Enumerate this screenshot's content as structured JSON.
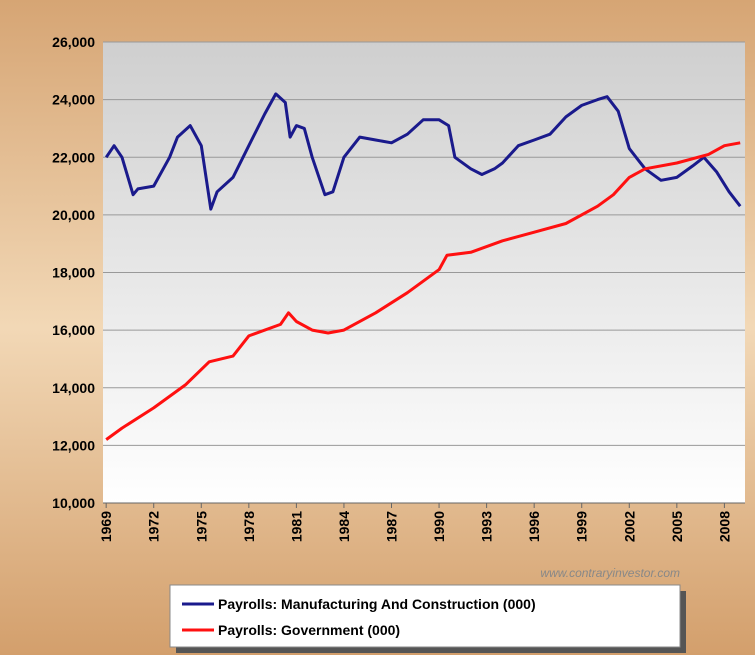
{
  "chart_data": {
    "type": "line",
    "xlim": [
      1968.8,
      2009.3
    ],
    "xticks": [
      1969,
      1972,
      1975,
      1978,
      1981,
      1984,
      1987,
      1990,
      1993,
      1996,
      1999,
      2002,
      2005,
      2008
    ],
    "ylim": [
      10000,
      26000
    ],
    "yticks": [
      {
        "value": 10000,
        "label": "10,000"
      },
      {
        "value": 12000,
        "label": "12,000"
      },
      {
        "value": 14000,
        "label": "14,000"
      },
      {
        "value": 16000,
        "label": "16,000"
      },
      {
        "value": 18000,
        "label": "18,000"
      },
      {
        "value": 20000,
        "label": "20,000"
      },
      {
        "value": 22000,
        "label": "22,000"
      },
      {
        "value": 24000,
        "label": "24,000"
      },
      {
        "value": 26000,
        "label": "26,000"
      }
    ],
    "grid": true,
    "annotation": "www.contraryinvestor.com",
    "series": [
      {
        "name": "Payrolls: Manufacturing And Construction (000)",
        "color": "#1a1a8c",
        "x": [
          1969,
          1969.5,
          1970,
          1970.7,
          1971,
          1972,
          1973,
          1973.5,
          1974.3,
          1975,
          1975.6,
          1976,
          1977,
          1978,
          1979,
          1979.7,
          1980.3,
          1980.6,
          1981,
          1981.5,
          1982,
          1982.8,
          1983.3,
          1984,
          1985,
          1986,
          1987,
          1988,
          1989,
          1990,
          1990.6,
          1991,
          1992,
          1992.7,
          1993.5,
          1994,
          1995,
          1996,
          1997,
          1998,
          1999,
          2000,
          2000.6,
          2001.3,
          2002,
          2003,
          2004,
          2005,
          2006,
          2006.7,
          2007.5,
          2008.3,
          2009
        ],
        "values": [
          22000,
          22400,
          22000,
          20700,
          20900,
          21000,
          22000,
          22700,
          23100,
          22400,
          20200,
          20800,
          21300,
          22400,
          23500,
          24200,
          23900,
          22700,
          23100,
          23000,
          22000,
          20700,
          20800,
          22000,
          22700,
          22600,
          22500,
          22800,
          23300,
          23300,
          23100,
          22000,
          21600,
          21400,
          21600,
          21800,
          22400,
          22600,
          22800,
          23400,
          23800,
          24000,
          24100,
          23600,
          22300,
          21600,
          21200,
          21300,
          21700,
          22000,
          21500,
          20800,
          20300
        ]
      },
      {
        "name": "Payrolls: Government (000)",
        "color": "#ff1010",
        "x": [
          1969,
          1970,
          1972,
          1974,
          1975.5,
          1977,
          1978,
          1980,
          1980.5,
          1981,
          1982,
          1983,
          1984,
          1986,
          1988,
          1990,
          1990.5,
          1992,
          1994,
          1996,
          1998,
          2000,
          2001,
          2002,
          2003,
          2005,
          2007,
          2008,
          2009
        ],
        "values": [
          12200,
          12600,
          13300,
          14100,
          14900,
          15100,
          15800,
          16200,
          16600,
          16300,
          16000,
          15900,
          16000,
          16600,
          17300,
          18100,
          18600,
          18700,
          19100,
          19400,
          19700,
          20300,
          20700,
          21300,
          21600,
          21800,
          22100,
          22400,
          22500
        ]
      }
    ]
  }
}
